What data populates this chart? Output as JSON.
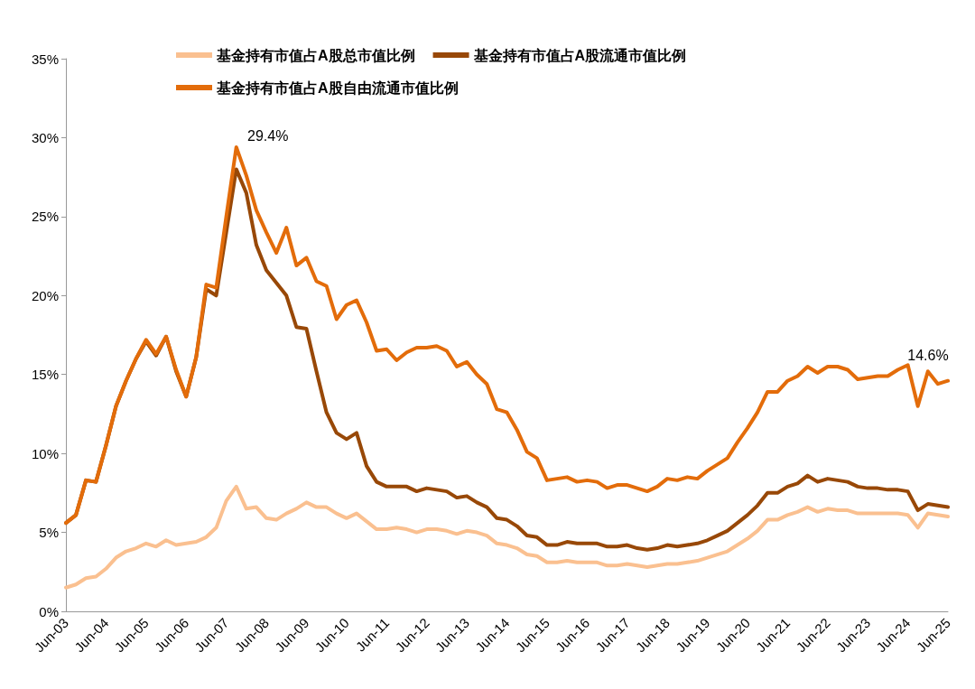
{
  "chart_data": {
    "type": "line",
    "categories": [
      "Jun-03",
      null,
      null,
      null,
      "Jun-04",
      null,
      null,
      null,
      "Jun-05",
      null,
      null,
      null,
      "Jun-06",
      null,
      null,
      null,
      "Jun-07",
      null,
      null,
      null,
      "Jun-08",
      null,
      null,
      null,
      "Jun-09",
      null,
      null,
      null,
      "Jun-10",
      null,
      null,
      null,
      "Jun-11",
      null,
      null,
      null,
      "Jun-12",
      null,
      null,
      null,
      "Jun-13",
      null,
      null,
      null,
      "Jun-14",
      null,
      null,
      null,
      "Jun-15",
      null,
      null,
      null,
      "Jun-16",
      null,
      null,
      null,
      "Jun-17",
      null,
      null,
      null,
      "Jun-18",
      null,
      null,
      null,
      "Jun-19",
      null,
      null,
      null,
      "Jun-20",
      null,
      null,
      null,
      "Jun-21",
      null,
      null,
      null,
      "Jun-22",
      null,
      null,
      null,
      "Jun-23",
      null,
      null,
      null,
      "Jun-24",
      null,
      null,
      null,
      "Jun-25"
    ],
    "series": [
      {
        "name": "基金持有市值占A股总市值比例",
        "color": "#fac090",
        "values": [
          1.5,
          1.7,
          2.1,
          2.2,
          2.7,
          3.4,
          3.8,
          4.0,
          4.3,
          4.1,
          4.5,
          4.2,
          4.3,
          4.4,
          4.7,
          5.3,
          7.0,
          7.9,
          6.5,
          6.6,
          5.9,
          5.8,
          6.2,
          6.5,
          6.9,
          6.6,
          6.6,
          6.2,
          5.9,
          6.2,
          5.7,
          5.2,
          5.2,
          5.3,
          5.2,
          5.0,
          5.2,
          5.2,
          5.1,
          4.9,
          5.1,
          5.0,
          4.8,
          4.3,
          4.2,
          4.0,
          3.6,
          3.5,
          3.1,
          3.1,
          3.2,
          3.1,
          3.1,
          3.1,
          2.9,
          2.9,
          3.0,
          2.9,
          2.8,
          2.9,
          3.0,
          3.0,
          3.1,
          3.2,
          3.4,
          3.6,
          3.8,
          4.2,
          4.6,
          5.1,
          5.8,
          5.8,
          6.1,
          6.3,
          6.6,
          6.3,
          6.5,
          6.4,
          6.4,
          6.2,
          6.2,
          6.2,
          6.2,
          6.2,
          6.1,
          5.3,
          6.2,
          6.1,
          6.0
        ]
      },
      {
        "name": "基金持有市值占A股流通市值比例",
        "color": "#984807",
        "values": [
          5.6,
          6.1,
          8.3,
          8.2,
          10.5,
          13.0,
          14.6,
          16.0,
          17.1,
          16.2,
          17.4,
          15.2,
          13.6,
          16.1,
          20.4,
          20.0,
          24.0,
          28.0,
          26.5,
          23.2,
          21.6,
          20.8,
          20.0,
          18.0,
          17.9,
          15.2,
          12.6,
          11.3,
          10.9,
          11.3,
          9.2,
          8.2,
          7.9,
          7.9,
          7.9,
          7.6,
          7.8,
          7.7,
          7.6,
          7.2,
          7.3,
          6.9,
          6.6,
          5.9,
          5.8,
          5.4,
          4.8,
          4.7,
          4.2,
          4.2,
          4.4,
          4.3,
          4.3,
          4.3,
          4.1,
          4.1,
          4.2,
          4.0,
          3.9,
          4.0,
          4.2,
          4.1,
          4.2,
          4.3,
          4.5,
          4.8,
          5.1,
          5.6,
          6.1,
          6.7,
          7.5,
          7.5,
          7.9,
          8.1,
          8.6,
          8.2,
          8.4,
          8.3,
          8.2,
          7.9,
          7.8,
          7.8,
          7.7,
          7.7,
          7.6,
          6.4,
          6.8,
          6.7,
          6.6
        ]
      },
      {
        "name": "基金持有市值占A股自由流通市值比例",
        "color": "#e36c0a",
        "values": [
          5.6,
          6.1,
          8.3,
          8.2,
          10.5,
          13.0,
          14.6,
          16.0,
          17.2,
          16.3,
          17.4,
          15.3,
          13.6,
          16.1,
          20.7,
          20.5,
          25.0,
          29.4,
          27.6,
          25.4,
          24.0,
          22.7,
          24.3,
          21.9,
          22.4,
          20.9,
          20.6,
          18.5,
          19.4,
          19.7,
          18.3,
          16.5,
          16.6,
          15.9,
          16.4,
          16.7,
          16.7,
          16.8,
          16.5,
          15.5,
          15.8,
          15.0,
          14.4,
          12.8,
          12.6,
          11.5,
          10.1,
          9.7,
          8.3,
          8.4,
          8.5,
          8.2,
          8.3,
          8.2,
          7.8,
          8.0,
          8.0,
          7.8,
          7.6,
          7.9,
          8.4,
          8.3,
          8.5,
          8.4,
          8.9,
          9.3,
          9.7,
          10.7,
          11.6,
          12.6,
          13.9,
          13.9,
          14.6,
          14.9,
          15.5,
          15.1,
          15.5,
          15.5,
          15.3,
          14.7,
          14.8,
          14.9,
          14.9,
          15.3,
          15.6,
          13.0,
          15.2,
          14.4,
          14.6
        ]
      }
    ],
    "ylim": [
      0,
      35
    ],
    "yticks": [
      {
        "value": 0,
        "label": "0%"
      },
      {
        "value": 5,
        "label": "5%"
      },
      {
        "value": 10,
        "label": "10%"
      },
      {
        "value": 15,
        "label": "15%"
      },
      {
        "value": 20,
        "label": "20%"
      },
      {
        "value": 25,
        "label": "25%"
      },
      {
        "value": 30,
        "label": "30%"
      },
      {
        "value": 35,
        "label": "35%"
      }
    ],
    "annotations": [
      "29.4%",
      {
        "text": "14.6%",
        "x": "Jun-25",
        "y": 14.6
      }
    ],
    "legend": "top",
    "grid": false,
    "marker": "none",
    "line_style": "solid"
  }
}
